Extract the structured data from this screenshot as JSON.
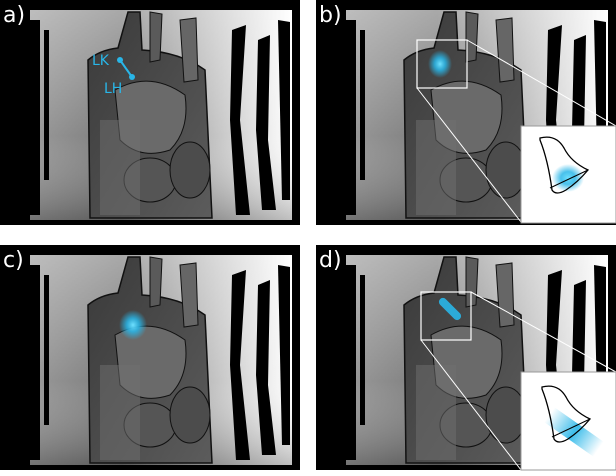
{
  "panels": [
    {
      "label": "a)"
    },
    {
      "label": "b)"
    },
    {
      "label": "c)"
    },
    {
      "label": "d)"
    }
  ],
  "annotations": {
    "knee": "LK",
    "hip": "LH"
  }
}
